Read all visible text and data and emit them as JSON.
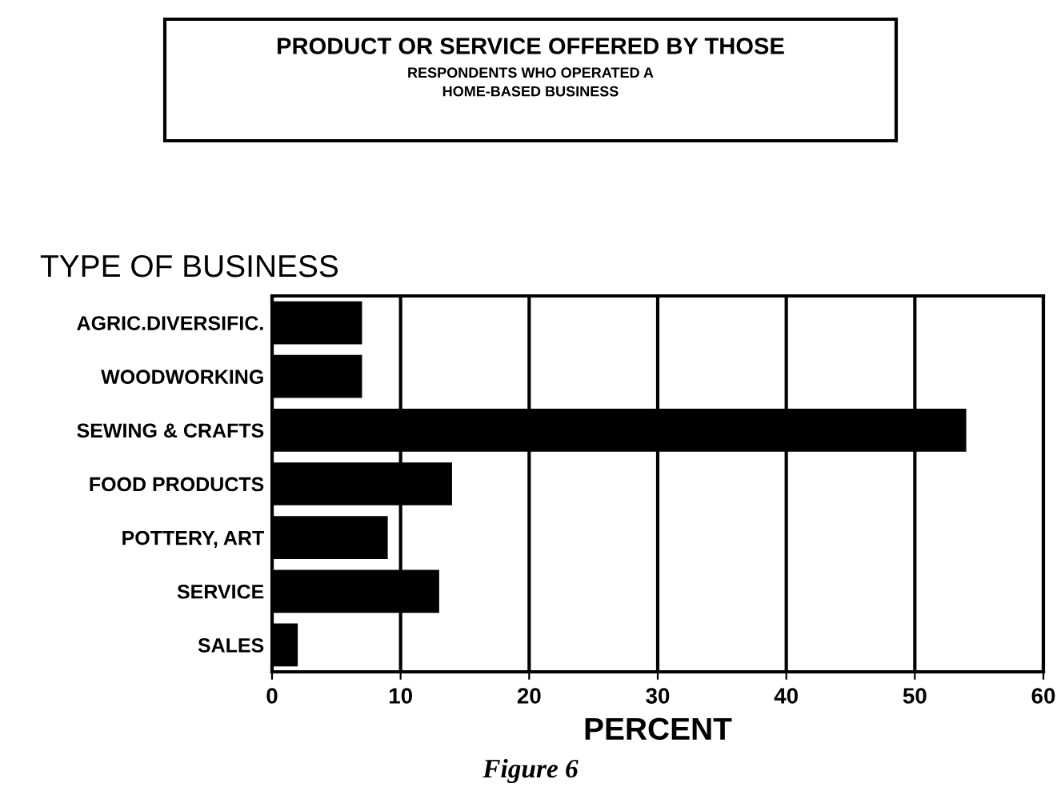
{
  "chart_data": {
    "type": "bar",
    "orientation": "horizontal",
    "title": "PRODUCT OR SERVICE OFFERED BY THOSE",
    "subtitle": "RESPONDENTS WHO OPERATED A\nHOME-BASED BUSINESS",
    "ylabel": "TYPE OF BUSINESS",
    "xlabel": "PERCENT",
    "annotations": [
      "Figure 6"
    ],
    "categories": [
      "AGRIC.DIVERSIFIC.",
      "WOODWORKING",
      "SEWING & CRAFTS",
      "FOOD PRODUCTS",
      "POTTERY, ART",
      "SERVICE",
      "SALES"
    ],
    "values": [
      7,
      7,
      54,
      14,
      9,
      13,
      2
    ],
    "color": "#000000",
    "xlim": [
      0,
      60
    ],
    "xticks": [
      0,
      10,
      20,
      30,
      40,
      50,
      60
    ],
    "grid": "x"
  }
}
